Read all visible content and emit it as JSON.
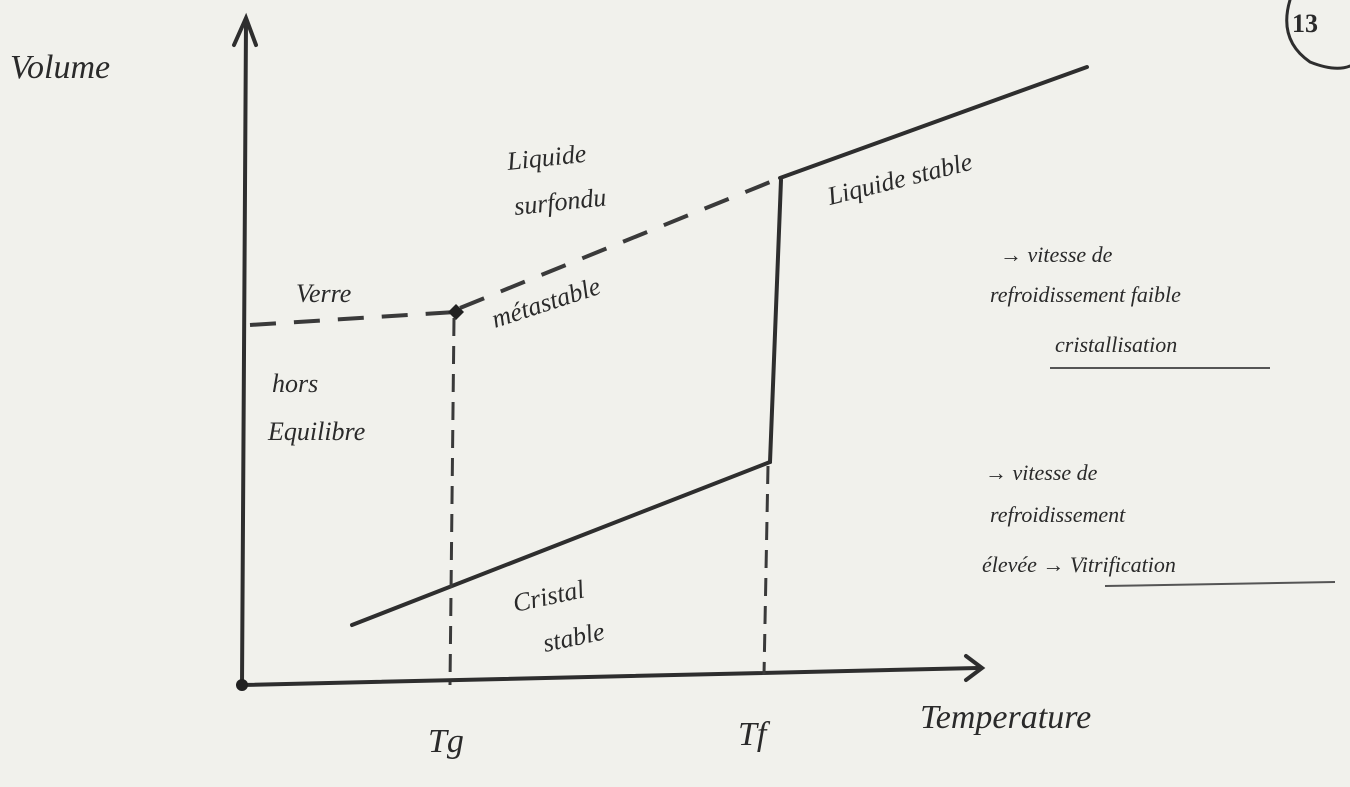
{
  "page_number": "13",
  "axes": {
    "y_label": "Volume",
    "x_label": "Temperature",
    "x_ticks": [
      "Tg",
      "Tf"
    ]
  },
  "regions": {
    "supercooled_liquid": [
      "Liquide",
      "surfondu"
    ],
    "stable_liquid": "Liquide stable",
    "glass": "Verre",
    "metastable": "métastable",
    "non_equilibrium": [
      "hors",
      "Equilibre"
    ],
    "crystal": [
      "Cristal",
      "stable"
    ]
  },
  "notes": [
    {
      "lines": [
        "→ vitesse de",
        "refroidissement faible",
        "cristallisation"
      ]
    },
    {
      "lines": [
        "→ vitesse de",
        "refroidissement",
        "élevée → Vitrification"
      ]
    }
  ]
}
